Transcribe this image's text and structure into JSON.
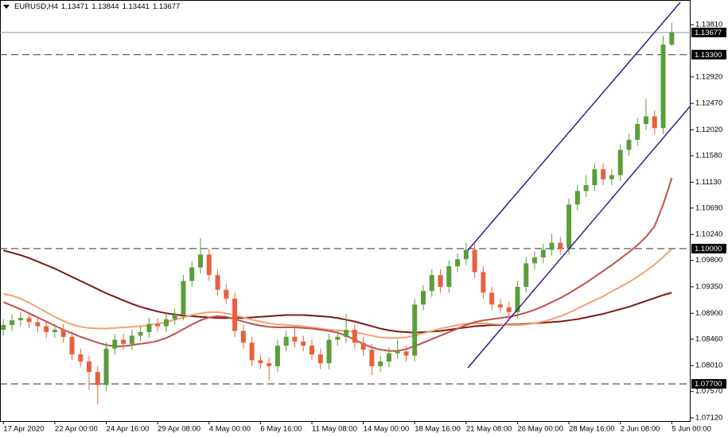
{
  "chart_data": {
    "type": "candlestick",
    "symbol": "EURUSD,H4",
    "up_color": "#5a9e3a",
    "down_color": "#e8603c",
    "xlim": [
      -0.4,
      80.2
    ],
    "xticks": [
      {
        "value": 0,
        "label": "17 Apr 2020"
      },
      {
        "value": 6,
        "label": "22 Apr 00:00"
      },
      {
        "value": 12,
        "label": "24 Apr 16:00"
      },
      {
        "value": 18,
        "label": "29 Apr 08:00"
      },
      {
        "value": 24,
        "label": "4 May 00:00"
      },
      {
        "value": 30,
        "label": "6 May 16:00"
      },
      {
        "value": 36,
        "label": "11 May 08:00"
      },
      {
        "value": 42,
        "label": "14 May 00:00"
      },
      {
        "value": 48,
        "label": "18 May 16:00"
      },
      {
        "value": 54,
        "label": "21 May 08:00"
      },
      {
        "value": 60,
        "label": "26 May 00:00"
      },
      {
        "value": 66,
        "label": "28 May 16:00"
      },
      {
        "value": 72,
        "label": "2 Jun 08:00"
      },
      {
        "value": 78,
        "label": "5 Jun 00:00"
      }
    ],
    "ylim": [
      1.07066,
      1.14229
    ],
    "yticks": [
      {
        "value": 1.1381,
        "label": "1.13810"
      },
      {
        "value": 1.1292,
        "label": "1.12920"
      },
      {
        "value": 1.1247,
        "label": "1.12470"
      },
      {
        "value": 1.1202,
        "label": "1.12020"
      },
      {
        "value": 1.1158,
        "label": "1.11580"
      },
      {
        "value": 1.1113,
        "label": "1.11130"
      },
      {
        "value": 1.1069,
        "label": "1.10690"
      },
      {
        "value": 1.1024,
        "label": "1.10240"
      },
      {
        "value": 1.098,
        "label": "1.09800"
      },
      {
        "value": 1.0935,
        "label": "1.09350"
      },
      {
        "value": 1.089,
        "label": "1.08900"
      },
      {
        "value": 1.0846,
        "label": "1.08460"
      },
      {
        "value": 1.0801,
        "label": "1.08010"
      },
      {
        "value": 1.0757,
        "label": "1.07570"
      },
      {
        "value": 1.0712,
        "label": "1.07120"
      }
    ],
    "last_price": 1.13677,
    "levels": [
      {
        "value": 1.133,
        "label": "1.13300"
      },
      {
        "value": 1.1,
        "label": "1.10000"
      },
      {
        "value": 1.077,
        "label": "1.07700"
      }
    ],
    "open": [
      1.0862,
      1.087,
      1.0878,
      1.0882,
      1.0875,
      1.0868,
      1.0858,
      1.0862,
      1.085,
      1.082,
      1.0808,
      1.079,
      1.0768,
      1.083,
      1.0845,
      1.0838,
      1.0852,
      1.0858,
      1.0872,
      1.0868,
      1.088,
      1.0888,
      1.0945,
      1.0968,
      1.099,
      1.0955,
      1.093,
      1.0915,
      1.086,
      1.084,
      1.081,
      1.0805,
      1.08,
      1.0835,
      1.085,
      1.0842,
      1.0835,
      1.082,
      1.0805,
      1.0845,
      1.085,
      1.0862,
      1.084,
      1.0828,
      1.08,
      1.0808,
      1.0822,
      1.0825,
      1.0818,
      1.0905,
      1.0928,
      1.0955,
      1.0935,
      1.097,
      1.0982,
      1.0998,
      1.096,
      1.0925,
      1.0905,
      1.09,
      1.0892,
      1.0935,
      1.0975,
      1.0985,
      1.0998,
      1.101,
      1.1,
      1.1075,
      1.1098,
      1.1108,
      1.1135,
      1.1118,
      1.1125,
      1.1168,
      1.1185,
      1.1212,
      1.1225,
      1.1205,
      1.13471
    ],
    "high": [
      1.088,
      1.0888,
      1.0892,
      1.0892,
      1.0885,
      1.0878,
      1.0872,
      1.0872,
      1.086,
      1.083,
      1.0818,
      1.08,
      1.084,
      1.0855,
      1.0855,
      1.0862,
      1.0868,
      1.0882,
      1.0882,
      1.089,
      1.0898,
      1.0955,
      1.0978,
      1.1018,
      1.1,
      1.0965,
      1.094,
      1.0925,
      1.087,
      1.085,
      1.082,
      1.0815,
      1.0845,
      1.086,
      1.0868,
      1.0852,
      1.0845,
      1.083,
      1.0855,
      1.086,
      1.089,
      1.0872,
      1.085,
      1.0838,
      1.0818,
      1.0832,
      1.0845,
      1.0835,
      1.0915,
      1.0938,
      1.0965,
      1.0965,
      1.098,
      1.0992,
      1.101,
      1.1008,
      1.097,
      1.0935,
      1.0915,
      1.091,
      1.0945,
      1.0985,
      1.0995,
      1.1008,
      1.1025,
      1.102,
      1.1085,
      1.1108,
      1.1125,
      1.1145,
      1.1145,
      1.1135,
      1.1178,
      1.1195,
      1.1222,
      1.1255,
      1.1235,
      1.1362,
      1.13844
    ],
    "low": [
      1.0852,
      1.086,
      1.0868,
      1.0865,
      1.0858,
      1.0848,
      1.0848,
      1.084,
      1.081,
      1.0798,
      1.076,
      1.0735,
      1.0758,
      1.082,
      1.0828,
      1.0828,
      1.0842,
      1.0848,
      1.0858,
      1.0858,
      1.087,
      1.0878,
      1.0935,
      1.0958,
      1.0945,
      1.092,
      1.0905,
      1.085,
      1.083,
      1.08,
      1.0795,
      1.0775,
      1.079,
      1.0825,
      1.0832,
      1.0825,
      1.081,
      1.0795,
      1.0795,
      1.0835,
      1.084,
      1.083,
      1.0818,
      1.0785,
      1.079,
      1.0798,
      1.0812,
      1.0808,
      1.0808,
      1.0895,
      1.0918,
      1.0925,
      1.0925,
      1.096,
      1.0972,
      1.095,
      1.0915,
      1.0895,
      1.089,
      1.0882,
      1.0882,
      1.0925,
      1.0965,
      1.0975,
      1.0988,
      1.099,
      1.099,
      1.1065,
      1.1088,
      1.1098,
      1.1108,
      1.1108,
      1.1115,
      1.1158,
      1.1175,
      1.1202,
      1.1195,
      1.1195,
      1.13441
    ],
    "close": [
      1.087,
      1.0878,
      1.0882,
      1.0875,
      1.0868,
      1.0858,
      1.0862,
      1.085,
      1.082,
      1.0808,
      1.079,
      1.0768,
      1.083,
      1.0845,
      1.0838,
      1.0852,
      1.0858,
      1.0872,
      1.0868,
      1.088,
      1.0888,
      1.0945,
      1.0968,
      1.099,
      1.0955,
      1.093,
      1.0915,
      1.086,
      1.084,
      1.081,
      1.0805,
      1.08,
      1.0835,
      1.085,
      1.0842,
      1.0835,
      1.082,
      1.0805,
      1.0845,
      1.085,
      1.0862,
      1.084,
      1.0828,
      1.08,
      1.0808,
      1.0822,
      1.0825,
      1.0818,
      1.0905,
      1.0928,
      1.0955,
      1.0935,
      1.097,
      1.0982,
      1.0998,
      1.096,
      1.0925,
      1.0905,
      1.09,
      1.0892,
      1.0935,
      1.0975,
      1.0985,
      1.0998,
      1.101,
      1.1,
      1.1075,
      1.1098,
      1.1108,
      1.1135,
      1.1118,
      1.1125,
      1.1168,
      1.1185,
      1.1212,
      1.1225,
      1.1205,
      1.13471,
      1.13677
    ],
    "series": [
      {
        "color": "#7b1a10",
        "values": [
          1.0997,
          1.0993,
          1.0989,
          1.0984,
          1.0978,
          1.0972,
          1.0966,
          1.0959,
          1.0952,
          1.0945,
          1.0938,
          1.0931,
          1.0924,
          1.0918,
          1.0912,
          1.0906,
          1.0901,
          1.0897,
          1.0893,
          1.089,
          1.0888,
          1.0886,
          1.0885,
          1.0884,
          1.0883,
          1.0882,
          1.0882,
          1.0882,
          1.0882,
          1.0883,
          1.0884,
          1.0885,
          1.0886,
          1.0887,
          1.0887,
          1.0887,
          1.0886,
          1.0885,
          1.0884,
          1.0882,
          1.0879,
          1.0876,
          1.0872,
          1.0868,
          1.0864,
          1.0861,
          1.0859,
          1.0858,
          1.0857,
          1.0858,
          1.0859,
          1.086,
          1.0862,
          1.0864,
          1.0866,
          1.0868,
          1.0869,
          1.087,
          1.087,
          1.0871,
          1.0871,
          1.0872,
          1.0873,
          1.0874,
          1.0875,
          1.0876,
          1.0878,
          1.088,
          1.0883,
          1.0886,
          1.0889,
          1.0893,
          1.0897,
          1.0901,
          1.0906,
          1.0911,
          1.0916,
          1.0921,
          1.0925
        ]
      },
      {
        "color": "#f4a070",
        "values": [
          1.0923,
          1.092,
          1.0915,
          1.0908,
          1.09,
          1.0892,
          1.0884,
          1.0877,
          1.0871,
          1.0867,
          1.0865,
          1.0864,
          1.0864,
          1.0865,
          1.0866,
          1.0867,
          1.0868,
          1.087,
          1.0872,
          1.0875,
          1.0879,
          1.0883,
          1.0887,
          1.089,
          1.0892,
          1.0892,
          1.089,
          1.0887,
          1.0883,
          1.0879,
          1.0876,
          1.0873,
          1.0871,
          1.087,
          1.0869,
          1.0868,
          1.0866,
          1.0864,
          1.0862,
          1.0861,
          1.086,
          1.0858,
          1.0855,
          1.0852,
          1.0849,
          1.0848,
          1.0848,
          1.0849,
          1.0852,
          1.0856,
          1.086,
          1.0864,
          1.0867,
          1.087,
          1.0872,
          1.0873,
          1.0873,
          1.0872,
          1.0871,
          1.087,
          1.087,
          1.0871,
          1.0873,
          1.0876,
          1.088,
          1.0885,
          1.0891,
          1.0898,
          1.0905,
          1.0912,
          1.0919,
          1.0927,
          1.0935,
          1.0943,
          1.0952,
          1.0962,
          1.0973,
          1.0986,
          1.0999
        ]
      },
      {
        "color": "#c0504d",
        "values": [
          1.0909,
          1.0903,
          1.0897,
          1.089,
          1.0883,
          1.0876,
          1.0869,
          1.0862,
          1.0856,
          1.085,
          1.0845,
          1.084,
          1.0836,
          1.0834,
          1.0834,
          1.0836,
          1.0838,
          1.084,
          1.0843,
          1.0848,
          1.0855,
          1.0863,
          1.0871,
          1.0878,
          1.0883,
          1.0885,
          1.0884,
          1.088,
          1.0876,
          1.0872,
          1.0869,
          1.0867,
          1.0866,
          1.0866,
          1.0866,
          1.0865,
          1.0864,
          1.0862,
          1.086,
          1.0857,
          1.0852,
          1.0845,
          1.0838,
          1.0832,
          1.0828,
          1.0826,
          1.0826,
          1.0829,
          1.0834,
          1.084,
          1.0846,
          1.0852,
          1.0858,
          1.0864,
          1.087,
          1.0875,
          1.0878,
          1.088,
          1.0882,
          1.0884,
          1.0887,
          1.0891,
          1.0896,
          1.0902,
          1.0909,
          1.0916,
          1.0924,
          1.0933,
          1.0942,
          1.0952,
          1.0962,
          1.0972,
          1.0983,
          1.0994,
          1.1006,
          1.102,
          1.1038,
          1.1075,
          1.112
        ]
      }
    ]
  }
}
